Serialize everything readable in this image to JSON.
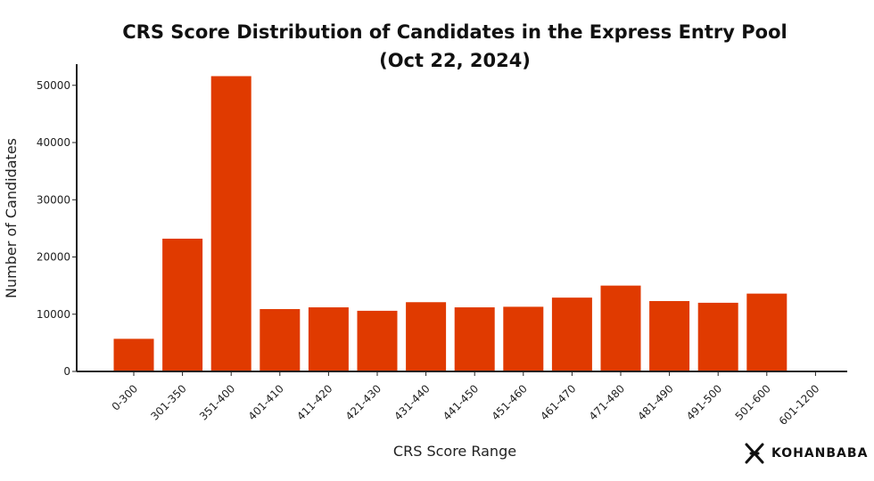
{
  "chart_data": {
    "type": "bar",
    "title_line1": "CRS Score Distribution of Candidates in the Express Entry Pool",
    "title_line2": "(Oct 22, 2024)",
    "xlabel": "CRS Score Range",
    "ylabel": "Number of Candidates",
    "categories": [
      "0-300",
      "301-350",
      "351-400",
      "401-410",
      "411-420",
      "421-430",
      "431-440",
      "441-450",
      "451-460",
      "461-470",
      "471-480",
      "481-490",
      "491-500",
      "501-600",
      "601-1200"
    ],
    "values": [
      5700,
      23200,
      51600,
      10900,
      11200,
      10600,
      12100,
      11200,
      11300,
      12900,
      15000,
      12300,
      12000,
      13600,
      120
    ],
    "ylim": [
      0,
      53700
    ],
    "yticks": [
      0,
      10000,
      20000,
      30000,
      40000,
      50000
    ],
    "grid": false,
    "bar_color": "#e03a00"
  },
  "brand": {
    "name": "KOHANBABA",
    "logo_icon": "kohanbaba-logo-icon"
  }
}
